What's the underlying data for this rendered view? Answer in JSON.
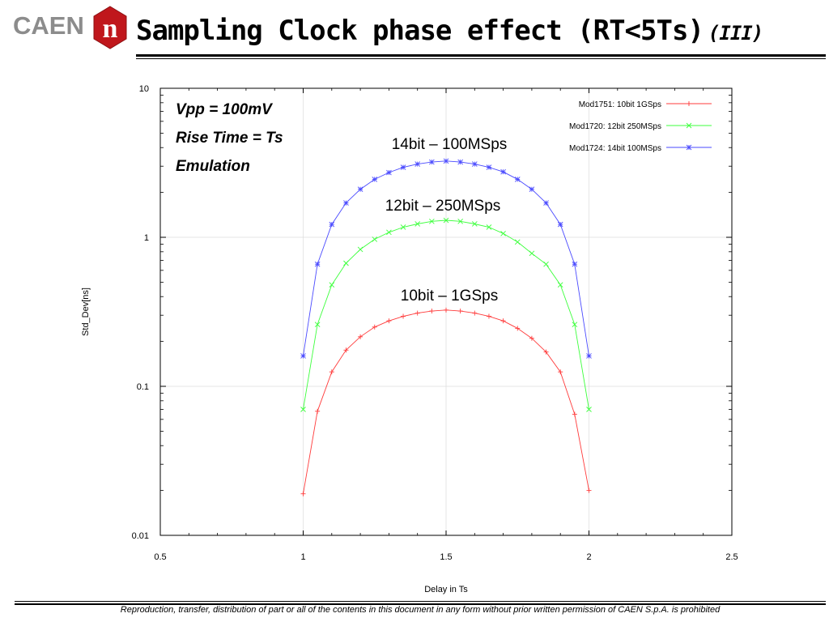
{
  "header": {
    "logo_text": "CAEN",
    "logo_mark_letter": "n",
    "title": "Sampling Clock phase effect (RT<5Ts)",
    "title_sub": "(III)"
  },
  "footer": {
    "text": "Reproduction, transfer, distribution of part or all of the contents in this document in any form without prior written permission of  CAEN S.p.A. is prohibited"
  },
  "colors": {
    "brand_red": "#c0171c",
    "logo_gray": "#8c8c8c",
    "series_red": "#ff3b3b",
    "series_green": "#3cff3c",
    "series_blue": "#4a4aff"
  },
  "chart_data": {
    "type": "line",
    "xlabel": "Delay in Ts",
    "ylabel": "Std_Dev[ns]",
    "xlim": [
      0.5,
      2.5
    ],
    "ylim": [
      0.01,
      10
    ],
    "yscale": "log",
    "xticks": [
      "0.5",
      "1",
      "1.5",
      "2",
      "2.5"
    ],
    "yticks": [
      "0.01",
      "0.1",
      "1",
      "10"
    ],
    "grid": true,
    "legend_position": "top-right",
    "annotations": [
      {
        "text": "Vpp = 100mV",
        "style": "bold-italic"
      },
      {
        "text": "Rise Time = Ts",
        "style": "bold-italic"
      },
      {
        "text": "Emulation",
        "style": "bold-italic"
      },
      {
        "text": "14bit – 100MSps",
        "style": "normal"
      },
      {
        "text": "12bit – 250MSps",
        "style": "normal"
      },
      {
        "text": "10bit – 1GSps",
        "style": "normal"
      }
    ],
    "x": [
      1.0,
      1.05,
      1.1,
      1.15,
      1.2,
      1.25,
      1.3,
      1.35,
      1.4,
      1.45,
      1.5,
      1.55,
      1.6,
      1.65,
      1.7,
      1.75,
      1.8,
      1.85,
      1.9,
      1.95,
      2.0
    ],
    "series": [
      {
        "name": "Mod1751: 10bit 1GSps",
        "color": "#ff3b3b",
        "marker": "+",
        "values": [
          0.019,
          0.068,
          0.125,
          0.175,
          0.215,
          0.25,
          0.275,
          0.295,
          0.31,
          0.32,
          0.325,
          0.32,
          0.31,
          0.295,
          0.275,
          0.245,
          0.21,
          0.17,
          0.125,
          0.065,
          0.02
        ]
      },
      {
        "name": "Mod1720: 12bit 250MSps",
        "color": "#3cff3c",
        "marker": "x",
        "values": [
          0.07,
          0.26,
          0.48,
          0.67,
          0.83,
          0.97,
          1.08,
          1.17,
          1.23,
          1.28,
          1.3,
          1.28,
          1.23,
          1.17,
          1.06,
          0.93,
          0.78,
          0.66,
          0.48,
          0.26,
          0.07
        ]
      },
      {
        "name": "Mod1724: 14bit 100MSps",
        "color": "#4a4aff",
        "marker": "*",
        "values": [
          0.16,
          0.66,
          1.22,
          1.7,
          2.1,
          2.45,
          2.72,
          2.95,
          3.1,
          3.2,
          3.25,
          3.2,
          3.1,
          2.95,
          2.75,
          2.45,
          2.1,
          1.7,
          1.22,
          0.66,
          0.16
        ]
      }
    ]
  }
}
